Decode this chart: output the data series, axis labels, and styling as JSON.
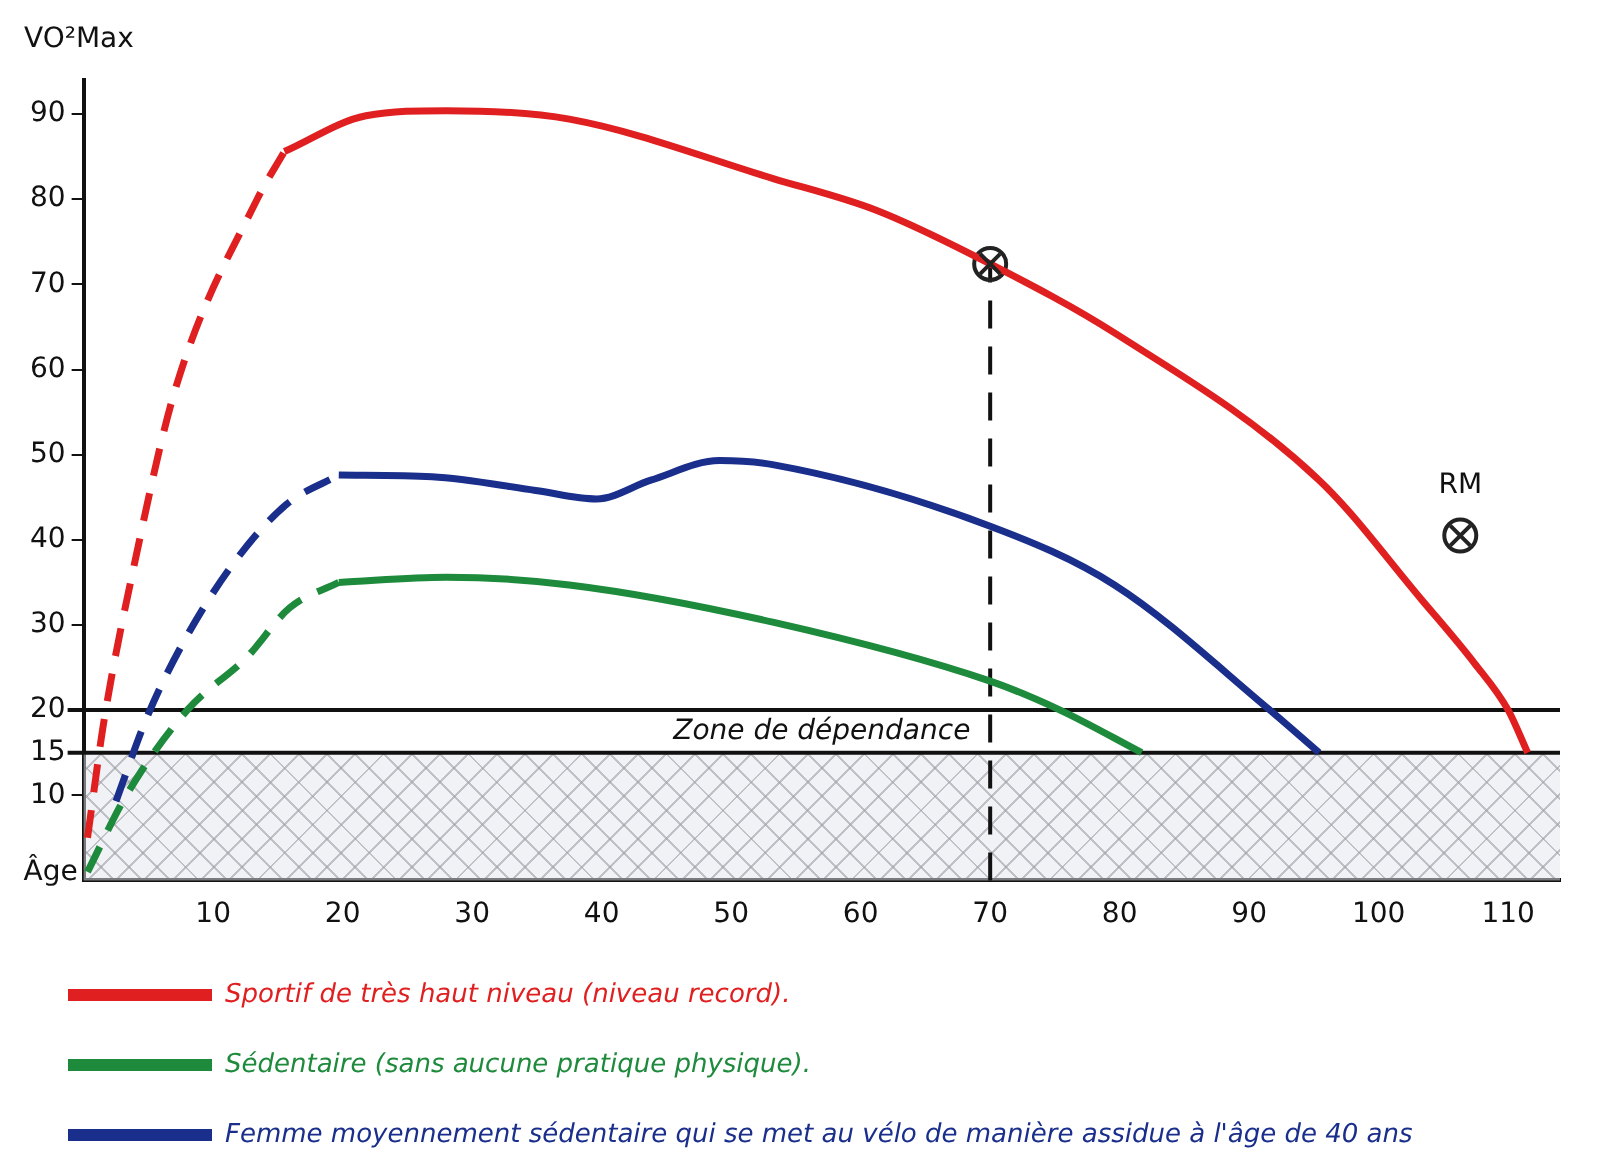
{
  "chart_data": {
    "type": "line",
    "xlabel": "Âge",
    "ylabel": "VO²Max",
    "xlim": [
      0,
      114
    ],
    "ylim": [
      0,
      94
    ],
    "xticks": [
      10,
      20,
      30,
      40,
      50,
      60,
      70,
      80,
      90,
      100,
      110
    ],
    "yticks": [
      10,
      15,
      20,
      30,
      40,
      50,
      60,
      70,
      80,
      90
    ],
    "grid": false,
    "legend": "bottom",
    "marker": "none",
    "series": [
      {
        "name": "Sportif de très haut niveau (niveau record).",
        "color": "#e02020",
        "line_style": "solid",
        "x": [
          15.5,
          21.8,
          28,
          37.5,
          53.3,
          61.2,
          70,
          79.6,
          95.4,
          103.3,
          107.4,
          110,
          111.5
        ],
        "values": [
          85.6,
          89.8,
          90.4,
          89.4,
          82.4,
          78.7,
          72.4,
          64.3,
          47,
          33,
          25.5,
          20,
          15
        ]
      },
      {
        "name": "Sédentaire (sans aucune pratique physique).",
        "color": "#1e8a3c",
        "line_style": "solid",
        "x": [
          19.7,
          28,
          37.5,
          53.3,
          70,
          75.4,
          81.7
        ],
        "values": [
          35,
          35.6,
          34.7,
          30.3,
          23.4,
          20,
          15
        ]
      },
      {
        "name": "Femme moyennement sédentaire qui se met au vélo de manière assidue à l'âge de 40 ans",
        "color": "#1a2e8c",
        "line_style": "solid",
        "x": [
          19.7,
          26.9,
          34.9,
          39.6,
          43.8,
          49.1,
          53.3,
          70,
          79.6,
          91.6,
          95.4
        ],
        "values": [
          47.6,
          47.4,
          45.8,
          44.8,
          47,
          49.3,
          48.8,
          41.6,
          34.7,
          20,
          15
        ]
      },
      {
        "color": "#e02020",
        "line_style": "dashed",
        "x": [
          0.3,
          1.6,
          3.9,
          7.1,
          13.4,
          15.5
        ],
        "values": [
          5,
          19,
          37,
          57.8,
          80,
          85.6
        ]
      },
      {
        "color": "#1e8a3c",
        "line_style": "dashed",
        "x": [
          0.3,
          3.3,
          8,
          12.6,
          15.9,
          19.7
        ],
        "values": [
          1,
          10,
          20,
          26.2,
          32,
          35
        ]
      },
      {
        "color": "#1a2e8c",
        "line_style": "dashed",
        "x": [
          2.5,
          4.9,
          7.9,
          11.8,
          15.7,
          19.7
        ],
        "values": [
          9.3,
          19.2,
          28.5,
          37.7,
          44.2,
          47.6
        ]
      },
      {
        "type": "scatter",
        "color": "#222222",
        "marker": "circle",
        "x": [
          70,
          106.3
        ],
        "values": [
          72.4,
          40.5
        ]
      }
    ],
    "ref_lines": [
      {
        "axis": "y",
        "value": 20
      },
      {
        "axis": "y",
        "value": 15
      },
      {
        "axis": "x",
        "value": 70,
        "line_style": "dashed"
      }
    ],
    "bands": [
      {
        "axis": "y",
        "from": 0,
        "to": 15,
        "color": "#e4e5ec"
      }
    ],
    "annotations": [
      "Zone de dépendance",
      {
        "text": "RM",
        "x": 106.3,
        "y": 40.5
      }
    ]
  }
}
